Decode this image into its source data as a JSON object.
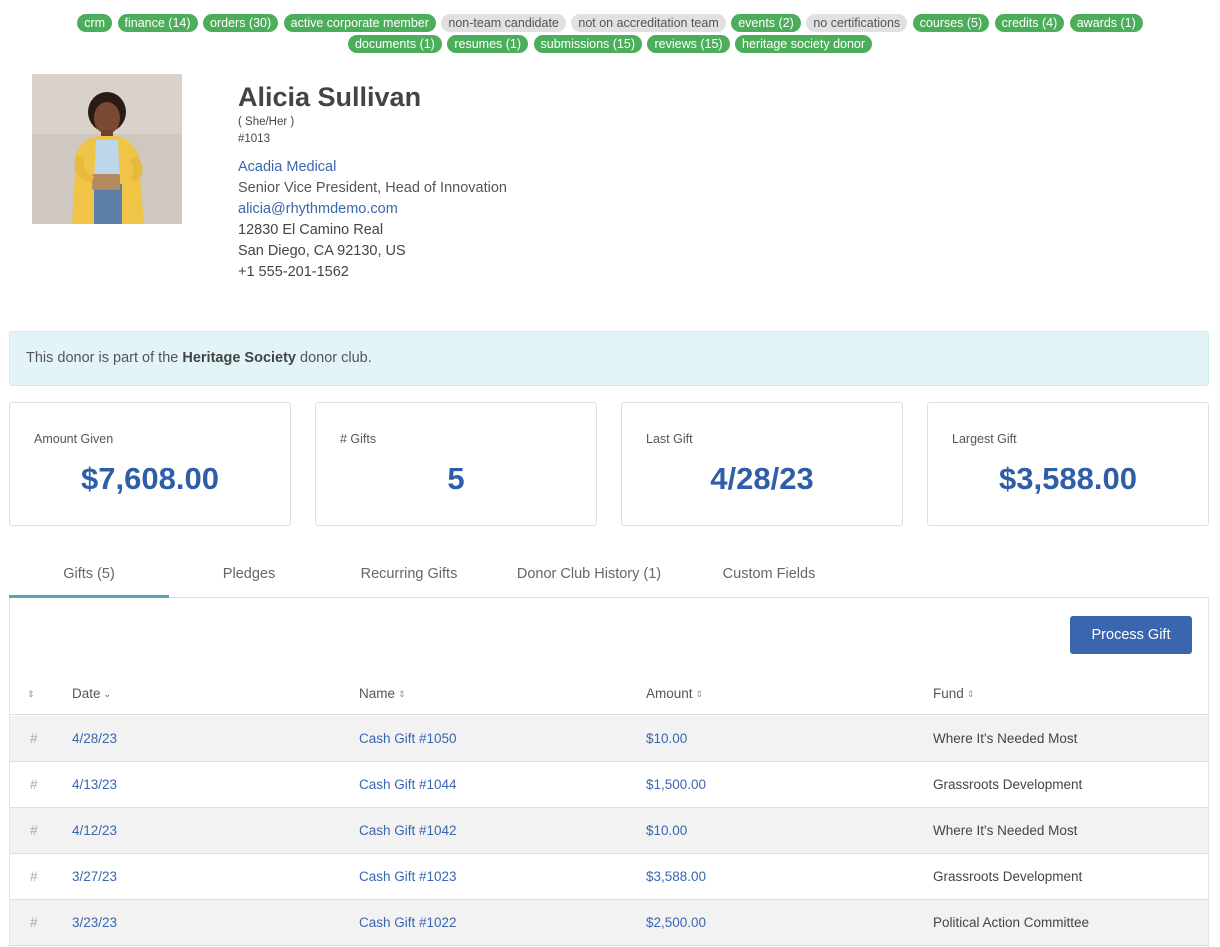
{
  "tags": [
    {
      "label": "crm",
      "style": "green"
    },
    {
      "label": "finance (14)",
      "style": "green"
    },
    {
      "label": "orders (30)",
      "style": "green"
    },
    {
      "label": "active corporate member",
      "style": "green"
    },
    {
      "label": "non-team candidate",
      "style": "grey"
    },
    {
      "label": "not on accreditation team",
      "style": "grey"
    },
    {
      "label": "events (2)",
      "style": "green"
    },
    {
      "label": "no certifications",
      "style": "grey"
    },
    {
      "label": "courses (5)",
      "style": "green"
    },
    {
      "label": "credits (4)",
      "style": "green"
    },
    {
      "label": "awards (1)",
      "style": "green"
    },
    {
      "label": "documents (1)",
      "style": "green"
    },
    {
      "label": "resumes (1)",
      "style": "green"
    },
    {
      "label": "submissions (15)",
      "style": "green"
    },
    {
      "label": "reviews (15)",
      "style": "green"
    },
    {
      "label": "heritage society donor",
      "style": "green"
    }
  ],
  "profile": {
    "name": "Alicia Sullivan",
    "pronouns": "( She/Her )",
    "id": "#1013",
    "company": "Acadia Medical",
    "title": "Senior Vice President, Head of Innovation",
    "email": "alicia@rhythmdemo.com",
    "address1": "12830 El Camino Real",
    "address2": "San Diego, CA 92130, US",
    "phone": "+1 555-201-1562"
  },
  "alert": {
    "prefix": "This donor is part of the ",
    "club": "Heritage Society",
    "suffix": " donor club."
  },
  "stats": [
    {
      "label": "Amount Given",
      "value": "$7,608.00"
    },
    {
      "label": "# Gifts",
      "value": "5"
    },
    {
      "label": "Last Gift",
      "value": "4/28/23"
    },
    {
      "label": "Largest Gift",
      "value": "$3,588.00"
    }
  ],
  "tabs": [
    {
      "label": "Gifts (5)",
      "active": true
    },
    {
      "label": "Pledges",
      "active": false
    },
    {
      "label": "Recurring Gifts",
      "active": false
    },
    {
      "label": "Donor Club History (1)",
      "active": false
    },
    {
      "label": "Custom Fields",
      "active": false
    }
  ],
  "actions": {
    "process_gift": "Process Gift"
  },
  "table": {
    "headers": {
      "date": "Date",
      "name": "Name",
      "amount": "Amount",
      "fund": "Fund"
    },
    "rows": [
      {
        "hash": "#",
        "date": "4/28/23",
        "name": "Cash Gift #1050",
        "amount": "$10.00",
        "fund": "Where It's Needed Most"
      },
      {
        "hash": "#",
        "date": "4/13/23",
        "name": "Cash Gift #1044",
        "amount": "$1,500.00",
        "fund": "Grassroots Development"
      },
      {
        "hash": "#",
        "date": "4/12/23",
        "name": "Cash Gift #1042",
        "amount": "$10.00",
        "fund": "Where It's Needed Most"
      },
      {
        "hash": "#",
        "date": "3/27/23",
        "name": "Cash Gift #1023",
        "amount": "$3,588.00",
        "fund": "Grassroots Development"
      },
      {
        "hash": "#",
        "date": "3/23/23",
        "name": "Cash Gift #1022",
        "amount": "$2,500.00",
        "fund": "Political Action Committee"
      }
    ]
  },
  "colors": {
    "accent": "#3a66b0",
    "tag_green": "#4cae5b",
    "tag_grey": "#e1e1e1",
    "stat_value": "#2f5ea8",
    "alert_bg": "#e3f4f9",
    "tab_underline": "#56a3b5"
  },
  "icons": {
    "sort": "sort-icon",
    "sort_desc": "chevron-down-icon"
  }
}
